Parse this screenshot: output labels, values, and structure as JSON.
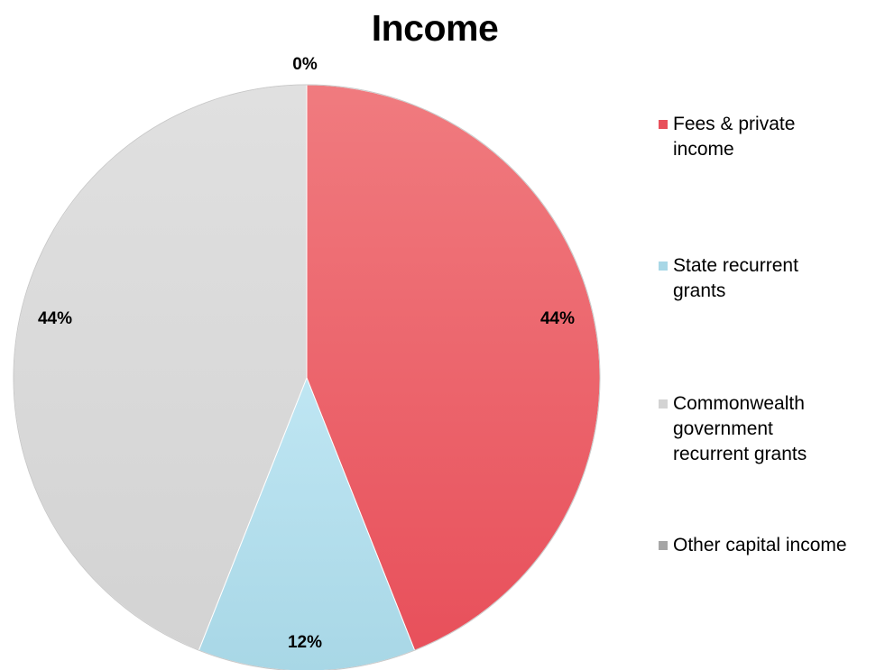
{
  "chart_data": {
    "type": "pie",
    "title": "Income",
    "slices": [
      {
        "name": "Fees & private income",
        "value": 44,
        "label": "44%",
        "color": "#e8505b",
        "color_light": "#f07b7f"
      },
      {
        "name": "State recurrent grants",
        "value": 12,
        "label": "12%",
        "color": "#a8d7e6",
        "color_light": "#bfe6f3"
      },
      {
        "name": "Commonwealth government recurrent grants",
        "value": 44,
        "label": "44%",
        "color": "#d3d3d3",
        "color_light": "#e0e0e0"
      },
      {
        "name": "Other capital income",
        "value": 0,
        "label": "0%",
        "color": "#a6a6a6",
        "color_light": "#a6a6a6"
      }
    ],
    "start_angle": 0,
    "direction": "clockwise",
    "legend_position": "right"
  }
}
